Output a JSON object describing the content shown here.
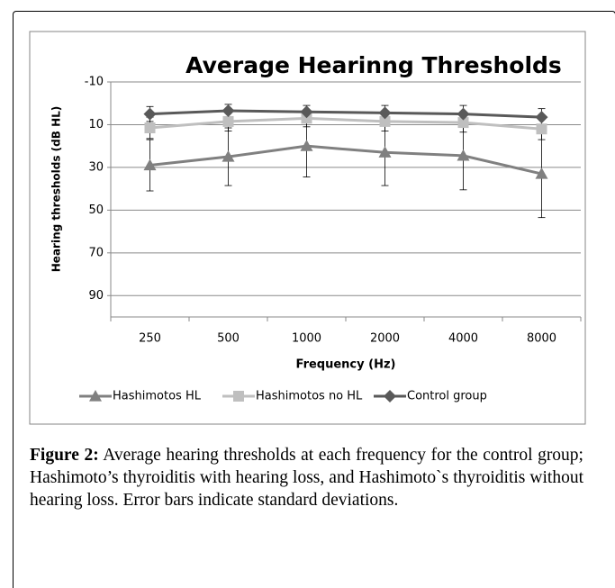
{
  "chart_data": {
    "type": "line",
    "title": "Average Hearinng Thresholds",
    "x_label": "Frequency (Hz)",
    "y_label": "Hearing thresholds (dB HL)",
    "categories": [
      "250",
      "500",
      "1000",
      "2000",
      "4000",
      "8000"
    ],
    "series": [
      {
        "name": "Hashimotos HL",
        "color": "#808080",
        "marker": "triangle",
        "values": [
          29,
          25,
          20,
          23,
          24.5,
          33
        ],
        "errors": [
          12,
          13.5,
          14.5,
          15.5,
          16,
          20.5
        ]
      },
      {
        "name": "Hashimotos no HL",
        "color": "#bfbfbf",
        "marker": "square",
        "values": [
          11.5,
          8.5,
          7,
          8.5,
          9,
          12
        ],
        "errors": [
          5,
          4.5,
          4,
          4.5,
          4.5,
          5
        ]
      },
      {
        "name": "Control group",
        "color": "#595959",
        "marker": "diamond",
        "values": [
          5,
          3.5,
          4,
          4.5,
          5,
          6.5
        ],
        "errors": [
          3.5,
          3,
          3,
          3.5,
          4,
          4
        ]
      }
    ],
    "ylim": [
      -10,
      100
    ],
    "yticks": [
      -10,
      10,
      30,
      50,
      70,
      90
    ],
    "y_reversed": true,
    "grid": true,
    "legend": "bottom"
  },
  "caption": {
    "label": "Figure 2:",
    "text": "Average hearing thresholds at each frequency for the control group; Hashimoto’s thyroiditis with hearing loss, and Hashimoto`s thyroiditis without hearing loss. Error bars indicate standard deviations."
  }
}
